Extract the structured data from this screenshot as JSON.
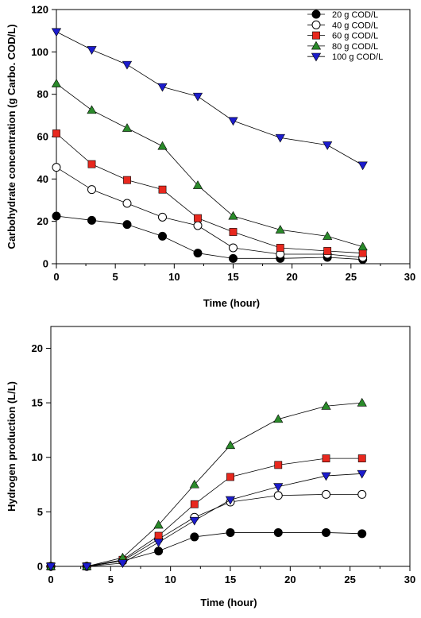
{
  "colors": {
    "series_20": "#000000",
    "series_40": "#ffffff",
    "series_60": "#e8281e",
    "series_80": "#2a8a2a",
    "series_100": "#1c1ccc",
    "line": "#000000"
  },
  "chart_data": [
    {
      "type": "line",
      "xlabel": "Time (hour)",
      "ylabel": "Carbohydrate concentration (g Carbo. COD/L)",
      "xlim": [
        0,
        30
      ],
      "ylim": [
        0,
        120
      ],
      "xticks": [
        0,
        5,
        10,
        15,
        20,
        25,
        30
      ],
      "yticks": [
        0,
        20,
        40,
        60,
        80,
        100,
        120
      ],
      "grid": false,
      "legend": "top-right",
      "series": [
        {
          "name": "20 g COD/L",
          "marker": "circle",
          "x": [
            0,
            3,
            6,
            9,
            12,
            15,
            19,
            23,
            26
          ],
          "values": [
            22.5,
            20.5,
            18.5,
            13,
            5,
            2.5,
            2.5,
            3,
            2
          ]
        },
        {
          "name": "40 g COD/L",
          "marker": "circle-open",
          "x": [
            0,
            3,
            6,
            9,
            12,
            15,
            19,
            23,
            26
          ],
          "values": [
            45.5,
            35,
            28.5,
            22,
            18,
            7.5,
            4.5,
            4.5,
            3
          ]
        },
        {
          "name": "60 g COD/L",
          "marker": "square",
          "x": [
            0,
            3,
            6,
            9,
            12,
            15,
            19,
            23,
            26
          ],
          "values": [
            61.5,
            47,
            39.5,
            35,
            21.5,
            15,
            7.5,
            6,
            5
          ]
        },
        {
          "name": "80 g COD/L",
          "marker": "triangle-up",
          "x": [
            0,
            3,
            6,
            9,
            12,
            15,
            19,
            23,
            26
          ],
          "values": [
            85,
            72.5,
            64,
            55.5,
            37,
            22.5,
            16,
            13,
            8
          ]
        },
        {
          "name": "100 g COD/L",
          "marker": "triangle-down",
          "x": [
            0,
            3,
            6,
            9,
            12,
            15,
            19,
            23,
            26
          ],
          "values": [
            109.5,
            101,
            94,
            83.5,
            79,
            67.5,
            59.5,
            56,
            46.5
          ]
        }
      ]
    },
    {
      "type": "line",
      "xlabel": "Time (hour)",
      "ylabel": "Hydrogen production (L/L)",
      "xlim": [
        0,
        30
      ],
      "ylim": [
        0,
        22
      ],
      "xticks": [
        0,
        5,
        10,
        15,
        20,
        25,
        30
      ],
      "yticks": [
        0,
        5,
        10,
        15,
        20
      ],
      "grid": false,
      "series": [
        {
          "name": "20 g COD/L",
          "marker": "circle",
          "x": [
            0,
            3,
            6,
            9,
            12,
            15,
            19,
            23,
            26
          ],
          "values": [
            0,
            0,
            0.5,
            1.4,
            2.7,
            3.1,
            3.1,
            3.1,
            3.0
          ]
        },
        {
          "name": "40 g COD/L",
          "marker": "circle-open",
          "x": [
            0,
            3,
            6,
            9,
            12,
            15,
            19,
            23,
            26
          ],
          "values": [
            0,
            0,
            0.5,
            2.5,
            4.5,
            5.9,
            6.5,
            6.6,
            6.6
          ]
        },
        {
          "name": "60 g COD/L",
          "marker": "square",
          "x": [
            0,
            3,
            6,
            9,
            12,
            15,
            19,
            23,
            26
          ],
          "values": [
            0,
            0,
            0.6,
            2.8,
            5.7,
            8.2,
            9.3,
            9.9,
            9.9
          ]
        },
        {
          "name": "80 g COD/L",
          "marker": "triangle-up",
          "x": [
            0,
            3,
            6,
            9,
            12,
            15,
            19,
            23,
            26
          ],
          "values": [
            0,
            0,
            0.8,
            3.8,
            7.5,
            11.1,
            13.5,
            14.7,
            15.0
          ]
        },
        {
          "name": "100 g COD/L",
          "marker": "triangle-down",
          "x": [
            0,
            3,
            6,
            9,
            12,
            15,
            19,
            23,
            26
          ],
          "values": [
            0,
            0,
            0.3,
            2.2,
            4.2,
            6.1,
            7.3,
            8.3,
            8.5
          ]
        }
      ]
    }
  ]
}
